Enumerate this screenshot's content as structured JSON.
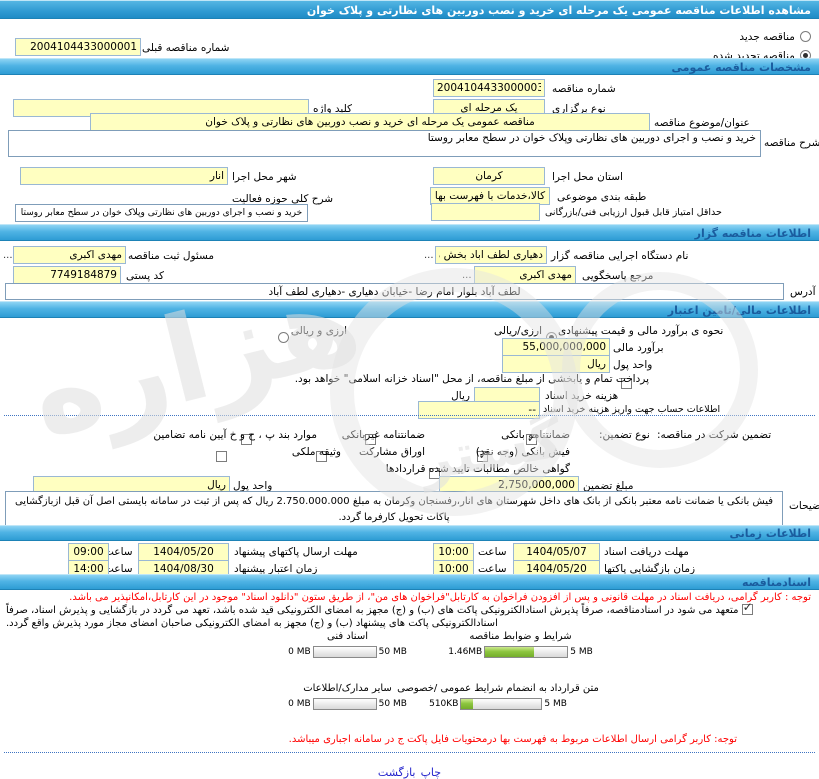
{
  "header": {
    "title": "مشاهده اطلاعات مناقصه عمومی یک مرحله ای خرید و نصب دوربین های نظارتی و پلاک خوان"
  },
  "top": {
    "new_label": "مناقصه جدید",
    "new_checked": false,
    "renewed_label": "مناقصه تجدید شده",
    "renewed_checked": true,
    "prev_no_label": "شماره مناقصه قبلی",
    "prev_no_value": "2004104433000001"
  },
  "general": {
    "title": "مشخصات مناقصه عمومی",
    "tender_no_label": "شماره مناقصه",
    "tender_no_value": "2004104433000003",
    "type_label": "نوع برگزاری",
    "type_value": "یک مرحله ای",
    "keyword_label": "کلید واژه",
    "keyword_value": "",
    "subject_label": "عنوان/موضوع مناقصه",
    "subject_value": "مناقصه عمومی یک مرحله ای خرید و نصب دوربین های نظارتی و پلاک خوان",
    "desc_label": "شرح مناقصه",
    "desc_value": "خرید و نصب و اجرای دوربین های نظارتی وپلاک خوان در  سطح معابر روستا",
    "province_label": "استان محل اجرا",
    "province_value": "کرمان",
    "city_label": "شهر محل اجرا",
    "city_value": "انار",
    "category_label": "طبقه بندی موضوعی",
    "category_value": "کالا،خدمات با فهرست بها",
    "activity_label": "شرح کلی حوزه فعالیت",
    "activity_value": "خرید و نصب و اجرای دوربین های نظارتی وپلاک خوان در سطح معابر روستا",
    "min_score_label": "حداقل امتیاز قابل قبول ارزیابی فنی/بازرگانی",
    "min_score_value": ""
  },
  "organizer": {
    "title": "اطلاعات مناقصه گزار",
    "agency_label": "نام دستگاه اجرایی مناقصه گزار",
    "agency_value": "دهیاری لطف اباد بخش مرک",
    "more": "...",
    "registrar_label": "مسئول ثبت مناقصه",
    "registrar_value": "مهدی اکبری",
    "respond_label": "مرجع پاسخگویی",
    "respond_value": "مهدی اکبری",
    "postal_label": "کد پستی",
    "postal_value": "7749184879",
    "address_label": "آدرس",
    "address_value": "لطف آباد بلوار امام رضا -خیابان دهیاری -دهیاری لطف آباد"
  },
  "financial": {
    "title": "اطلاعات مالی/تامین اعتبار",
    "method_label": "نحوه ی برآورد مالی و قیمت پیشنهادی",
    "method_opt1": "ارزی/ریالی",
    "method_opt1_checked": true,
    "method_opt2": "ارزی و ریالی",
    "method_opt2_checked": false,
    "estimate_label": "برآورد مالی",
    "estimate_value": "55,000,000,000",
    "currency_label": "واحد پول",
    "currency_value": "ریال",
    "treasury_note": "پرداخت تمام و یابخشی از مبلغ مناقصه، از محل \"اسناد خزانه اسلامی\" خواهد بود.",
    "treasury_checked": false,
    "doc_fee_label": "هزینه خرید اسناد",
    "doc_fee_value": "",
    "doc_fee_unit": "ریال",
    "account_label": "اطلاعات حساب جهت واریز هزینه خرید اسناد",
    "account_value": "--",
    "guarantee_label": "تضمین شرکت در مناقصه:",
    "type_label": "نوع تضمین:",
    "options": [
      {
        "label": "ضمانتنامه بانکی",
        "checked": true
      },
      {
        "label": "ضمانتنامه غیربانکی",
        "checked": false
      },
      {
        "label": "موارد بند پ ، ح و خ آیین نامه تضامین",
        "checked": false
      },
      {
        "label": "فیش بانکی (وجه نقد)",
        "checked": true
      },
      {
        "label": "اوراق مشارکت",
        "checked": false
      },
      {
        "label": "وثیقه ملکی",
        "checked": false
      },
      {
        "label": "گواهی خالص مطالبات تایید شده قراردادها",
        "checked": false
      }
    ],
    "amount_label": "مبلغ تضمین",
    "amount_value": "2,750,000,000",
    "currency2_label": "واحد پول",
    "currency2_value": "ریال",
    "notes_label": "توضیحات",
    "notes_value": "فیش بانکی یا ضمانت نامه معتبر بانکی از بانک های داخل شهرستان های انار،رفسنجان وکرمان به مبلغ 2.750.000.000 ریال که پس از ثبت در سامانه بایستی اصل آن قبل ازبازگشایی پاکات تحویل کارفرما گردد."
  },
  "timing": {
    "title": "اطلاعات زمانی",
    "hour_label": "ساعت",
    "rows": [
      {
        "label": "مهلت دریافت اسناد",
        "date": "1404/05/07",
        "time": "10:00"
      },
      {
        "label": "مهلت ارسال پاکتهای پیشنهاد",
        "date": "1404/05/20",
        "time": "09:00"
      },
      {
        "label": "زمان بازگشایی پاکتها",
        "date": "1404/05/20",
        "time": "10:00"
      },
      {
        "label": "زمان اعتبار پیشنهاد",
        "date": "1404/08/30",
        "time": "14:00"
      }
    ]
  },
  "documents": {
    "title": "اسنادمناقصه",
    "notice_download": "توجه : کاربر گرامی، دریافت اسناد در مهلت قانونی و پس از افزودن فراخوان به کارتابل\"فراخوان های من\"،  از طریق ستون \"دانلود اسناد\" موجود در این کارتابل،امکانپذیر می باشد.",
    "pledge": "متعهد می شود در اسنادمناقصه، صرفاً پذیرش اسنادالکترونیکی پاکت های (ب) و (ج) مجهز به امضای الکترونیکی قید شده باشد، تعهد می گردد در بازگشایی و پذیرش اسناد، صرفاً اسنادالکترونیکی پاکت های پیشنهاد (ب) و (ج) مجهز به امضای الکترونیکی صاحبان امضای مجاز مورد پذیرش واقع گردد.",
    "pledge_checked": true,
    "uploads": [
      {
        "label": "شرایط و ضوابط مناقصه",
        "min": "1.46MB",
        "max": "5 MB",
        "pct": 60
      },
      {
        "label": "اسناد فنی",
        "min": "0 MB",
        "max": "50 MB",
        "pct": 0
      },
      {
        "label": "متن قرارداد به انضمام شرایط عمومی /خصوصی",
        "min": "510KB",
        "max": "5 MB",
        "pct": 15
      },
      {
        "label": "سایر مدارک/اطلاعات",
        "min": "0 MB",
        "max": "50 MB",
        "pct": 0
      }
    ],
    "notice_fehrest": "توجه: کاربر گرامی ارسال اطلاعات مربوط به فهرست بها درمحتویات فایل پاکت ج در سامانه اجباری میباشد."
  },
  "footer": {
    "print": "چاپ",
    "back": "بازگشت"
  },
  "watermark": {
    "text1": "هزاره",
    "text2": "گستر"
  }
}
